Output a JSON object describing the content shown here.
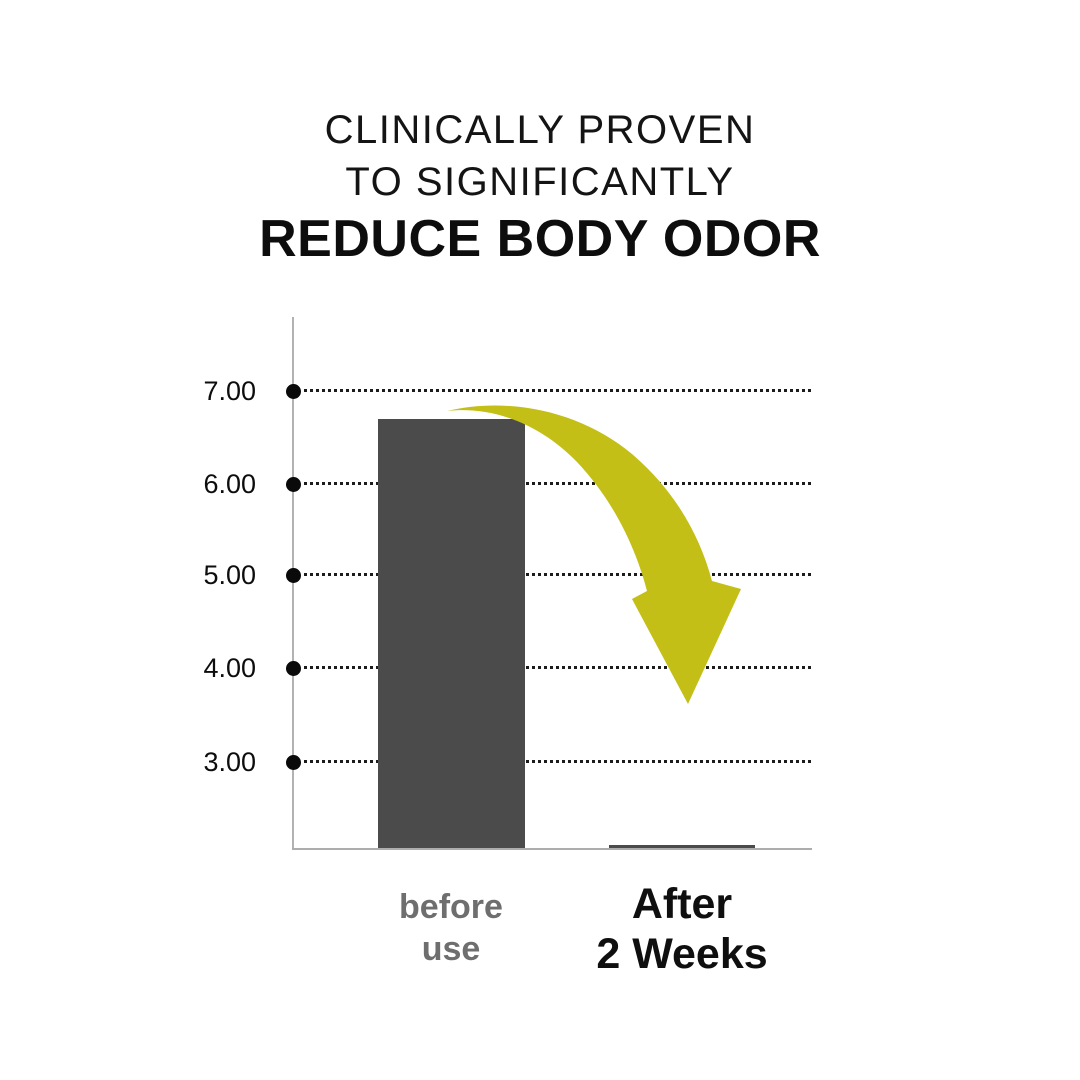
{
  "title": {
    "line1": "CLINICALLY PROVEN",
    "line2": "TO SIGNIFICANTLY",
    "line3": "REDUCE BODY ODOR"
  },
  "chart_data": {
    "type": "bar",
    "categories": [
      "before use",
      "After 2 Weeks"
    ],
    "values": [
      6.7,
      2.1
    ],
    "y_tick_labels": [
      "7.00",
      "6.00",
      "5.00",
      "4.00",
      "3.00"
    ],
    "y_ticks": [
      7,
      6,
      5,
      4,
      3
    ],
    "ylim": [
      2.05,
      7.8
    ],
    "grid": "horizontal dotted black lines with filled dot markers on y-axis",
    "legend": "none",
    "bar_color": "#4b4b4b",
    "arrow_color": "#c3bf16",
    "annotation": "large yellow-green curved arrow sweeping from top of 'before use' bar down toward the 'After 2 Weeks' bar"
  },
  "x_labels": [
    {
      "line1": "before",
      "line2": "use",
      "color": "#6e6e6e"
    },
    {
      "line1": "After",
      "line2": "2 Weeks",
      "color": "#0f0f0f"
    }
  ]
}
